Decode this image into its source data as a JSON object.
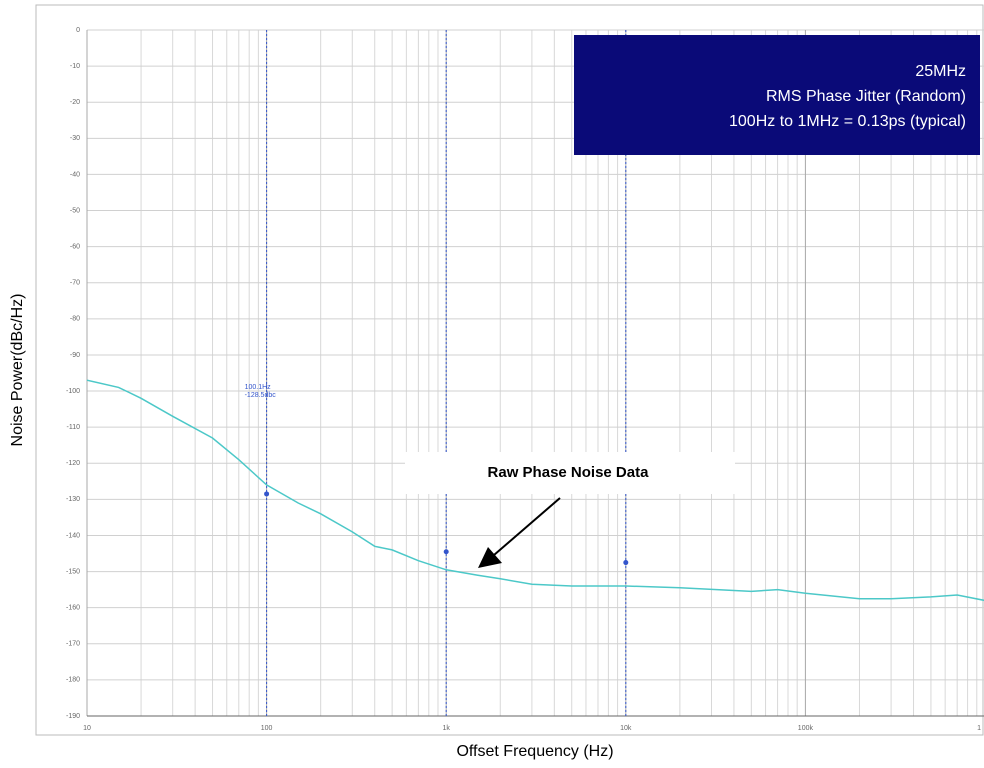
{
  "chart_data": {
    "type": "line",
    "x_label": "Offset Frequency (Hz)",
    "y_label": "Noise Power(dBc/Hz)",
    "x": [
      10,
      15,
      20,
      30,
      50,
      70,
      100,
      150,
      200,
      300,
      400,
      500,
      700,
      1000,
      1500,
      2000,
      3000,
      5000,
      7000,
      10000,
      20000,
      50000,
      70000,
      100000,
      200000,
      300000,
      500000,
      700000,
      1000000
    ],
    "series": [
      {
        "name": "Raw Phase Noise Data",
        "color": "#4cc8c8",
        "values": [
          -97,
          -99,
          -102,
          -107,
          -113,
          -119,
          -126,
          -131,
          -134,
          -139,
          -143,
          -144,
          -147,
          -149.5,
          -151,
          -152,
          -153.5,
          -154,
          -154,
          -154,
          -154.5,
          -155.5,
          -155,
          -156,
          -157.5,
          -157.5,
          -157,
          -156.5,
          -158
        ]
      }
    ],
    "xlim": [
      10,
      1000000
    ],
    "log_x": true,
    "xticks": [
      10,
      100,
      {
        "value": 1000,
        "label": "1k"
      },
      {
        "value": 10000,
        "label": "10k"
      },
      {
        "value": 100000,
        "label": "100k"
      },
      {
        "value": 1000000,
        "label": "1"
      }
    ],
    "ylim": [
      -190,
      0
    ],
    "yticks": [
      0,
      -10,
      -20,
      -30,
      -40,
      -50,
      -60,
      -70,
      -80,
      -90,
      -100,
      -110,
      -120,
      -130,
      -140,
      -150,
      -160,
      -170,
      -180,
      -190
    ],
    "grid": true,
    "markers": {
      "x": [
        100,
        1000,
        10000
      ],
      "values": [
        -128.5,
        -144.5,
        -147.5
      ],
      "color": "#3355cc",
      "label": [
        "100.1Hz",
        "-128.5dbc"
      ]
    },
    "info_box": [
      "25MHz",
      "RMS Phase Jitter (Random)",
      "100Hz to 1MHz = 0.13ps (typical)"
    ],
    "annotation": "Raw Phase Noise Data"
  }
}
